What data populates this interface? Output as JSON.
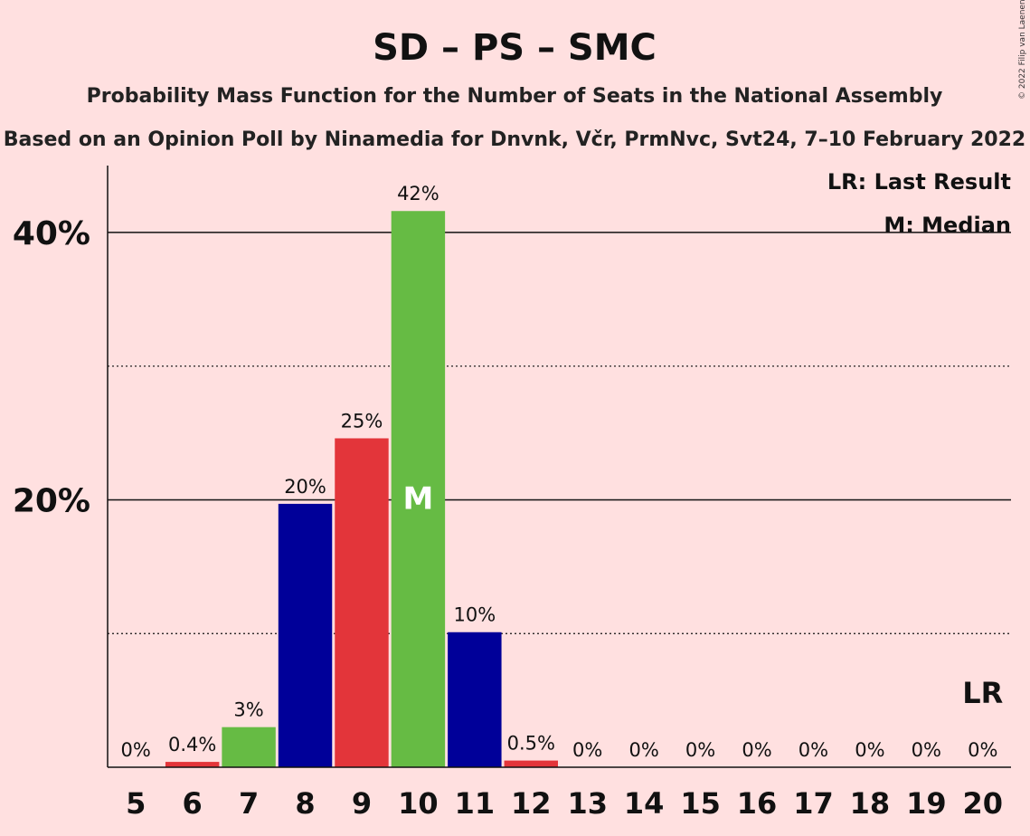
{
  "copyright": "© 2022 Filip van Laenen",
  "chart_data": {
    "type": "bar",
    "title": "SD – PS – SMC",
    "subtitle": "Probability Mass Function for the Number of Seats in the National Assembly",
    "subtitle2": "Based on an Opinion Poll by Ninamedia for Dnvnk, Včr, PrmNvc, Svt24, 7–10 February 2022",
    "legend": [
      "LR: Last Result",
      "M: Median"
    ],
    "categories": [
      "5",
      "6",
      "7",
      "8",
      "9",
      "10",
      "11",
      "12",
      "13",
      "14",
      "15",
      "16",
      "17",
      "18",
      "19",
      "20"
    ],
    "values": [
      0,
      0.4,
      3,
      19.7,
      24.6,
      41.6,
      10.1,
      0.5,
      0,
      0,
      0,
      0,
      0,
      0,
      0,
      0
    ],
    "data_labels": [
      "0%",
      "0.4%",
      "3%",
      "20%",
      "25%",
      "42%",
      "10%",
      "0.5%",
      "0%",
      "0%",
      "0%",
      "0%",
      "0%",
      "0%",
      "0%",
      "0%"
    ],
    "colors": [
      "#e3353a",
      "#e3353a",
      "#66bb44",
      "#000099",
      "#e3353a",
      "#66bb44",
      "#000099",
      "#e3353a",
      "#e3353a",
      "#66bb44",
      "#000099",
      "#e3353a",
      "#66bb44",
      "#000099",
      "#e3353a",
      "#66bb44"
    ],
    "ylim": [
      0,
      45
    ],
    "yticks_major": [
      20,
      40
    ],
    "ytick_labels": [
      "20%",
      "40%"
    ],
    "yticks_minor": [
      10,
      30
    ],
    "median_category": "10",
    "median_marker": "M",
    "last_result_category": "20",
    "last_result_marker": "LR"
  }
}
